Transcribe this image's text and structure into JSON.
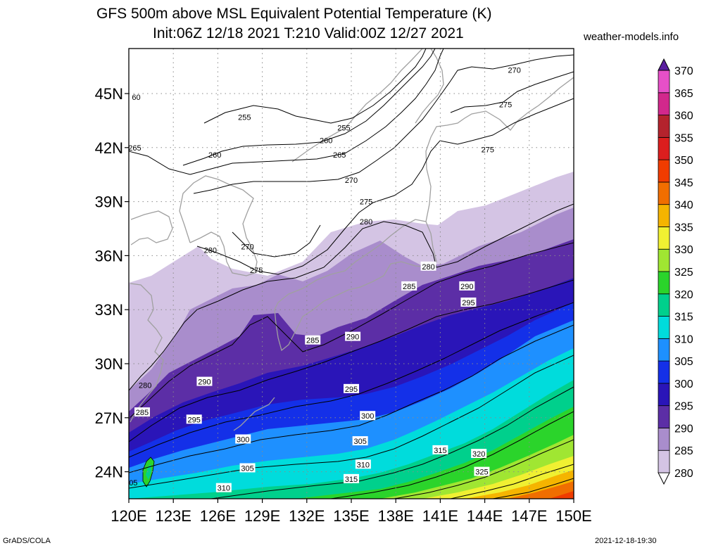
{
  "title": {
    "line1": "GFS 500m above MSL Equivalent Potential Temperature (K)",
    "line2": "Init:06Z 12/18 2021 T:210 Valid:00Z 12/27 2021"
  },
  "site": "weather-models.info",
  "footer": {
    "left": "GrADS/COLA",
    "right": "2021-12-18-19:30"
  },
  "map": {
    "lon_range": [
      120,
      150
    ],
    "lat_range": [
      22.5,
      47.5
    ],
    "lat_ticks": [
      {
        "value": 24,
        "label": "24N"
      },
      {
        "value": 27,
        "label": "27N"
      },
      {
        "value": 30,
        "label": "30N"
      },
      {
        "value": 33,
        "label": "33N"
      },
      {
        "value": 36,
        "label": "36N"
      },
      {
        "value": 39,
        "label": "39N"
      },
      {
        "value": 42,
        "label": "42N"
      },
      {
        "value": 45,
        "label": "45N"
      }
    ],
    "lon_ticks": [
      {
        "value": 120,
        "label": "120E"
      },
      {
        "value": 123,
        "label": "123E"
      },
      {
        "value": 126,
        "label": "126E"
      },
      {
        "value": 129,
        "label": "129E"
      },
      {
        "value": 132,
        "label": "132E"
      },
      {
        "value": 135,
        "label": "135E"
      },
      {
        "value": 138,
        "label": "138E"
      },
      {
        "value": 141,
        "label": "141E"
      },
      {
        "value": 144,
        "label": "144E"
      },
      {
        "value": 147,
        "label": "147E"
      },
      {
        "value": 150,
        "label": "150E"
      }
    ]
  },
  "colorbar": {
    "levels": [
      {
        "label": "280",
        "color": "#d4c4e4"
      },
      {
        "label": "285",
        "color": "#a98dcc"
      },
      {
        "label": "290",
        "color": "#5c2ea6"
      },
      {
        "label": "295",
        "color": "#2a15b8"
      },
      {
        "label": "300",
        "color": "#1430e8"
      },
      {
        "label": "305",
        "color": "#1e90ff"
      },
      {
        "label": "310",
        "color": "#00dcdc"
      },
      {
        "label": "315",
        "color": "#00d08c"
      },
      {
        "label": "320",
        "color": "#2bd42b"
      },
      {
        "label": "325",
        "color": "#a0e632"
      },
      {
        "label": "330",
        "color": "#f0f032"
      },
      {
        "label": "335",
        "color": "#f5b400"
      },
      {
        "label": "340",
        "color": "#f06e00"
      },
      {
        "label": "345",
        "color": "#f03c00"
      },
      {
        "label": "350",
        "color": "#dc1e1e"
      },
      {
        "label": "355",
        "color": "#b4232d"
      },
      {
        "label": "360",
        "color": "#d2288c"
      },
      {
        "label": "365",
        "color": "#e650c8"
      },
      {
        "label": "370",
        "color": "#8c1eb4"
      }
    ],
    "top_color": "#5a1ea0"
  },
  "contour_labels": [
    {
      "text": "60",
      "lon": 120.5,
      "lat": 44.8,
      "boxed": false
    },
    {
      "text": "255",
      "lon": 127.8,
      "lat": 43.7,
      "boxed": false
    },
    {
      "text": "255",
      "lon": 134.5,
      "lat": 43.1,
      "boxed": false
    },
    {
      "text": "260",
      "lon": 133.3,
      "lat": 42.4,
      "boxed": false
    },
    {
      "text": "265",
      "lon": 120.4,
      "lat": 42.0,
      "boxed": false
    },
    {
      "text": "260",
      "lon": 125.8,
      "lat": 41.6,
      "boxed": false
    },
    {
      "text": "265",
      "lon": 134.2,
      "lat": 41.6,
      "boxed": false
    },
    {
      "text": "270",
      "lon": 146.0,
      "lat": 46.3,
      "boxed": false
    },
    {
      "text": "275",
      "lon": 145.4,
      "lat": 44.4,
      "boxed": false
    },
    {
      "text": "275",
      "lon": 144.2,
      "lat": 41.9,
      "boxed": false
    },
    {
      "text": "270",
      "lon": 135.0,
      "lat": 40.2,
      "boxed": false
    },
    {
      "text": "275",
      "lon": 136.0,
      "lat": 39.0,
      "boxed": false
    },
    {
      "text": "280",
      "lon": 136.0,
      "lat": 37.9,
      "boxed": false
    },
    {
      "text": "270",
      "lon": 128.0,
      "lat": 36.5,
      "boxed": false
    },
    {
      "text": "280",
      "lon": 125.5,
      "lat": 36.3,
      "boxed": false
    },
    {
      "text": "275",
      "lon": 128.6,
      "lat": 35.2,
      "boxed": false
    },
    {
      "text": "280",
      "lon": 140.2,
      "lat": 35.4,
      "boxed": true
    },
    {
      "text": "285",
      "lon": 138.9,
      "lat": 34.3,
      "boxed": true
    },
    {
      "text": "290",
      "lon": 142.8,
      "lat": 34.3,
      "boxed": true
    },
    {
      "text": "295",
      "lon": 142.9,
      "lat": 33.4,
      "boxed": true
    },
    {
      "text": "285",
      "lon": 132.4,
      "lat": 31.3,
      "boxed": true
    },
    {
      "text": "290",
      "lon": 135.1,
      "lat": 31.5,
      "boxed": true
    },
    {
      "text": "280",
      "lon": 121.1,
      "lat": 28.8,
      "boxed": false
    },
    {
      "text": "290",
      "lon": 125.1,
      "lat": 29.0,
      "boxed": true
    },
    {
      "text": "295",
      "lon": 135.0,
      "lat": 28.6,
      "boxed": true
    },
    {
      "text": "285",
      "lon": 120.9,
      "lat": 27.3,
      "boxed": true
    },
    {
      "text": "295",
      "lon": 124.4,
      "lat": 26.9,
      "boxed": true
    },
    {
      "text": "300",
      "lon": 136.1,
      "lat": 27.1,
      "boxed": true
    },
    {
      "text": "300",
      "lon": 127.7,
      "lat": 25.8,
      "boxed": true
    },
    {
      "text": "305",
      "lon": 135.6,
      "lat": 25.7,
      "boxed": true
    },
    {
      "text": "315",
      "lon": 141.0,
      "lat": 25.2,
      "boxed": true
    },
    {
      "text": "320",
      "lon": 143.6,
      "lat": 25.0,
      "boxed": true
    },
    {
      "text": "305",
      "lon": 128.0,
      "lat": 24.2,
      "boxed": true
    },
    {
      "text": "310",
      "lon": 135.8,
      "lat": 24.4,
      "boxed": true
    },
    {
      "text": "325",
      "lon": 143.8,
      "lat": 24.0,
      "boxed": true
    },
    {
      "text": "315",
      "lon": 135.0,
      "lat": 23.6,
      "boxed": true
    },
    {
      "text": "310",
      "lon": 126.4,
      "lat": 23.1,
      "boxed": true
    },
    {
      "text": "05",
      "lon": 120.3,
      "lat": 23.4,
      "boxed": false
    }
  ]
}
